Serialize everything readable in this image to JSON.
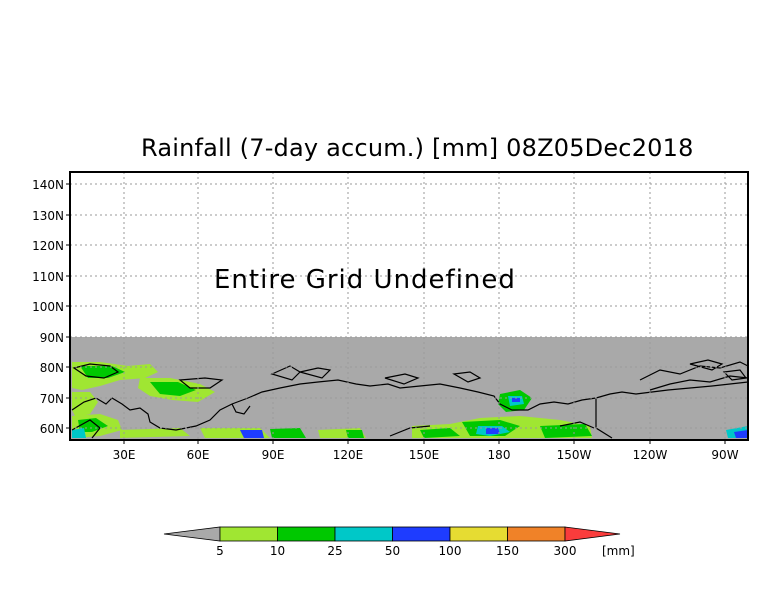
{
  "map": {
    "title": "Rainfall (7-day accum.) [mm] 08Z05Dec2018",
    "undefined_message": "Entire Grid Undefined",
    "lat_ticks": [
      "140N",
      "130N",
      "120N",
      "110N",
      "100N",
      "90N",
      "80N",
      "70N",
      "60N"
    ],
    "lon_ticks": [
      "30E",
      "60E",
      "90E",
      "120E",
      "150E",
      "180",
      "150W",
      "120W",
      "90W"
    ],
    "colors": {
      "masked_gray": "#a9a9a9",
      "frame": "#000000",
      "grid": "#9a9a9a"
    }
  },
  "colorbar": {
    "labels": [
      "5",
      "10",
      "25",
      "50",
      "100",
      "150",
      "300"
    ],
    "unit": "[mm]",
    "colors": [
      "#a9a9a9",
      "#a0e632",
      "#00c800",
      "#00c8c8",
      "#1e3cff",
      "#e6dc32",
      "#f08228",
      "#fa3c3c"
    ]
  }
}
